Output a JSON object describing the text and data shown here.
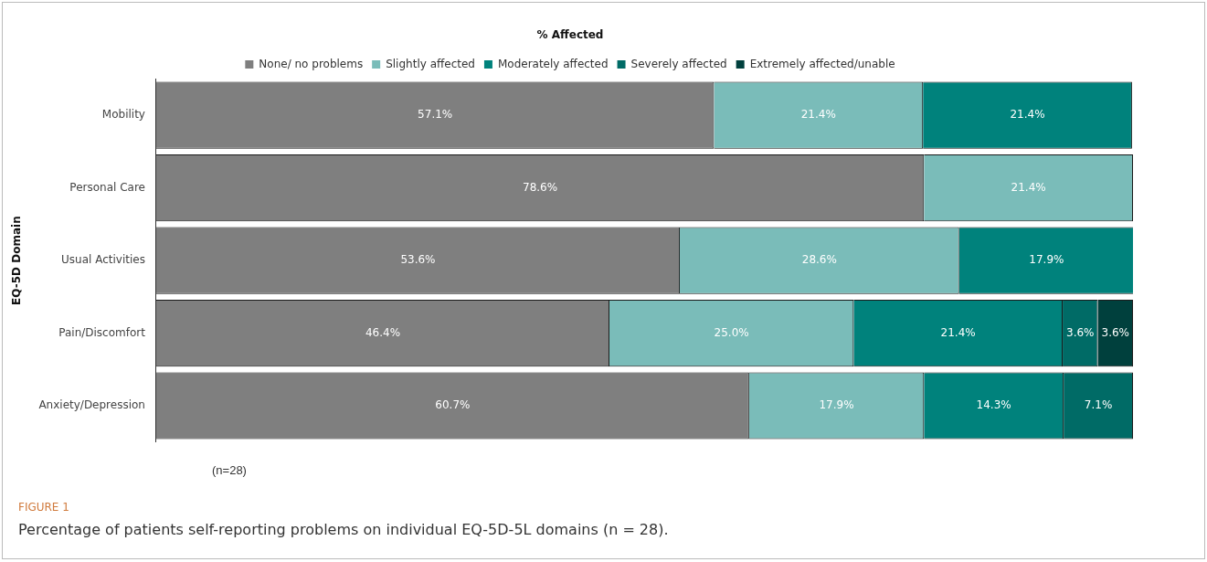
{
  "chart_data": {
    "type": "bar",
    "orientation": "horizontal",
    "stacked": true,
    "title": "% Affected",
    "ylabel": "EQ-5D Domain",
    "legend": "top",
    "grid": false,
    "tick_labels": "y",
    "xlim": [
      0,
      100
    ],
    "categories": [
      "Mobility",
      "Personal Care",
      "Usual Activities",
      "Pain/Discomfort",
      "Anxiety/Depression"
    ],
    "series": [
      {
        "name": "None/ no problems",
        "color": "#7f7f7f",
        "values": [
          57.1,
          78.6,
          53.6,
          46.4,
          60.7
        ],
        "value_labels": [
          "57.1%",
          "78.6%",
          "53.6%",
          "46.4%",
          "60.7%"
        ]
      },
      {
        "name": "Slightly affected",
        "color": "#7abcb9",
        "values": [
          21.4,
          21.4,
          28.6,
          25.0,
          17.9
        ],
        "value_labels": [
          "21.4%",
          "21.4%",
          "28.6%",
          "25.0%",
          "17.9%"
        ]
      },
      {
        "name": "Moderately affected",
        "color": "#00827c",
        "values": [
          21.4,
          null,
          17.9,
          21.4,
          14.3
        ],
        "value_labels": [
          "21.4%",
          null,
          "17.9%",
          "21.4%",
          "14.3%"
        ]
      },
      {
        "name": "Severely affected",
        "color": "#006b66",
        "values": [
          null,
          null,
          null,
          3.6,
          7.1
        ],
        "value_labels": [
          null,
          null,
          null,
          "3.6%",
          "7.1%"
        ]
      },
      {
        "name": "Extremely affected/unable",
        "color": "#00403d",
        "values": [
          null,
          null,
          null,
          3.6,
          null
        ],
        "value_labels": [
          null,
          null,
          null,
          "3.6%",
          null
        ]
      }
    ],
    "annotations": [
      "(n=28)",
      "FIGURE 1",
      "Percentage of patients self-reporting problems on individual EQ-5D-5L domains (n = 28)."
    ]
  }
}
